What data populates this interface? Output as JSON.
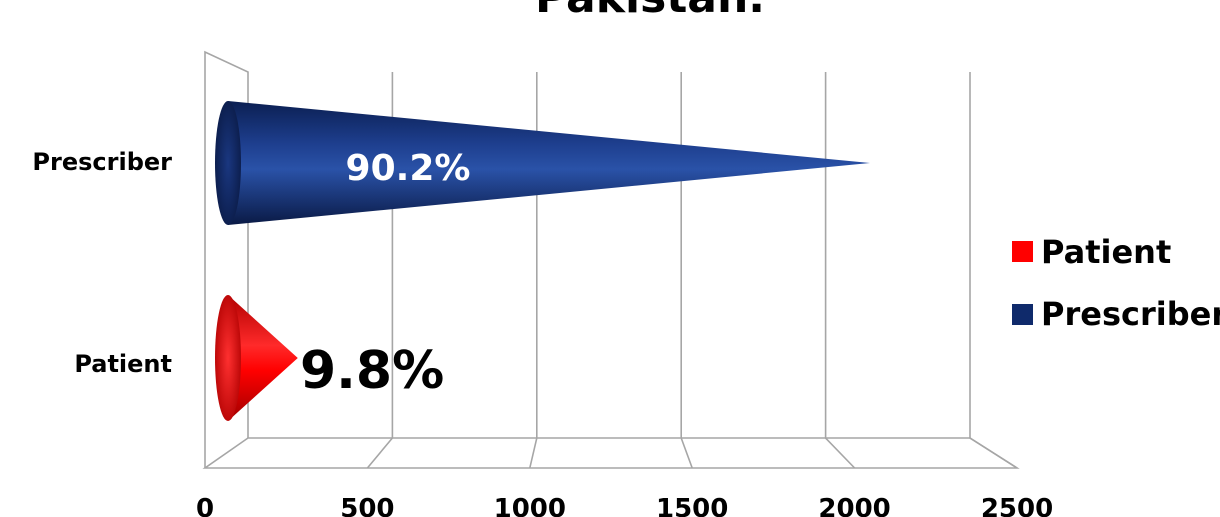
{
  "chart_data": {
    "type": "bar",
    "orientation": "horizontal",
    "style": "3d-cone",
    "title": "Pakistan.",
    "categories": [
      "Patient",
      "Prescriber"
    ],
    "series": [
      {
        "name": "Patient",
        "color": "#ff0000",
        "values": [
          250,
          null
        ],
        "data_label": "9.8%"
      },
      {
        "name": "Prescriber",
        "color": "#0f2a6b",
        "values": [
          null,
          2300
        ],
        "data_label": "90.2%"
      }
    ],
    "xlim": [
      0,
      2500
    ],
    "xticks": [
      0,
      500,
      1000,
      1500,
      2000,
      2500
    ],
    "xtick_labels": [
      "0",
      "500",
      "1000",
      "1500",
      "2000",
      "2500"
    ],
    "grid": true,
    "legend": {
      "position": "right",
      "entries": [
        "Patient",
        "Prescriber"
      ]
    }
  }
}
